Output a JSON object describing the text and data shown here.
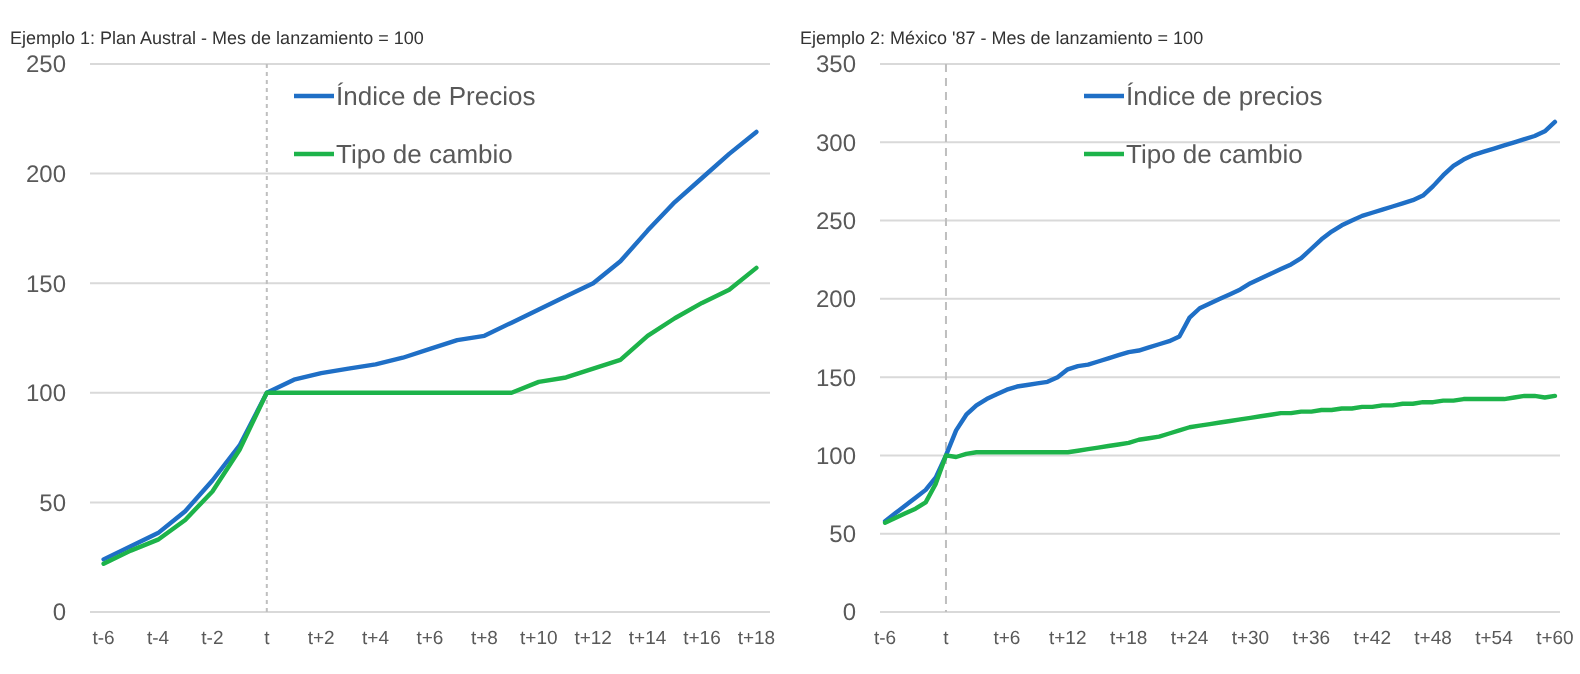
{
  "chart_data": [
    {
      "type": "line",
      "title": "Ejemplo 1: Plan Austral -  Mes de lanzamiento = 100",
      "categories": [
        "t-6",
        null,
        "t-4",
        null,
        "t-2",
        null,
        "t",
        null,
        "t+2",
        null,
        "t+4",
        null,
        "t+6",
        null,
        "t+8",
        null,
        "t+10",
        null,
        "t+12",
        null,
        "t+14",
        null,
        "t+16",
        null,
        "t+18"
      ],
      "series": [
        {
          "name": "Índice de Precios",
          "color": "#1f6fc6",
          "values": [
            24,
            30,
            36,
            46,
            60,
            76,
            100,
            106,
            109,
            111,
            113,
            116,
            120,
            124,
            126,
            132,
            138,
            144,
            150,
            160,
            174,
            187,
            198,
            209,
            219
          ]
        },
        {
          "name": "Tipo de cambio",
          "color": "#1db34a",
          "values": [
            22,
            28,
            33,
            42,
            55,
            74,
            100,
            100,
            100,
            100,
            100,
            100,
            100,
            100,
            100,
            100,
            105,
            107,
            111,
            115,
            126,
            134,
            141,
            147,
            157
          ]
        }
      ],
      "ylim": [
        0,
        250
      ],
      "yticks": [
        0,
        50,
        100,
        150,
        200,
        250
      ],
      "grid": "y",
      "legend": "top",
      "ref_lines": [
        {
          "axis": "x",
          "value": "t",
          "color": "#bfbfbf",
          "line_style": "dotted"
        }
      ]
    },
    {
      "type": "line",
      "title": "Ejemplo 2: México '87 -  Mes de lanzamiento = 100",
      "categories": [
        "t-6",
        null,
        null,
        null,
        null,
        null,
        "t",
        null,
        null,
        null,
        null,
        null,
        "t+6",
        null,
        null,
        null,
        null,
        null,
        "t+12",
        null,
        null,
        null,
        null,
        null,
        "t+18",
        null,
        null,
        null,
        null,
        null,
        "t+24",
        null,
        null,
        null,
        null,
        null,
        "t+30",
        null,
        null,
        null,
        null,
        null,
        "t+36",
        null,
        null,
        null,
        null,
        null,
        "t+42",
        null,
        null,
        null,
        null,
        null,
        "t+48",
        null,
        null,
        null,
        null,
        null,
        "t+54",
        null,
        null,
        null,
        null,
        null,
        "t+60"
      ],
      "series": [
        {
          "name": "Índice de precios",
          "color": "#1f6fc6",
          "values": [
            58,
            63,
            68,
            73,
            78,
            86,
            100,
            116,
            126,
            132,
            136,
            139,
            142,
            144,
            145,
            146,
            147,
            150,
            155,
            157,
            158,
            160,
            162,
            164,
            166,
            167,
            169,
            171,
            173,
            176,
            188,
            194,
            197,
            200,
            203,
            206,
            210,
            213,
            216,
            219,
            222,
            226,
            232,
            238,
            243,
            247,
            250,
            253,
            255,
            257,
            259,
            261,
            263,
            266,
            272,
            279,
            285,
            289,
            292,
            294,
            296,
            298,
            300,
            302,
            304,
            307,
            313
          ]
        },
        {
          "name": "Tipo de cambio",
          "color": "#1db34a",
          "values": [
            57,
            60,
            63,
            66,
            70,
            82,
            100,
            99,
            101,
            102,
            102,
            102,
            102,
            102,
            102,
            102,
            102,
            102,
            102,
            103,
            104,
            105,
            106,
            107,
            108,
            110,
            111,
            112,
            114,
            116,
            118,
            119,
            120,
            121,
            122,
            123,
            124,
            125,
            126,
            127,
            127,
            128,
            128,
            129,
            129,
            130,
            130,
            131,
            131,
            132,
            132,
            133,
            133,
            134,
            134,
            135,
            135,
            136,
            136,
            136,
            136,
            136,
            137,
            138,
            138,
            137,
            138
          ]
        }
      ],
      "ylim": [
        0,
        350
      ],
      "yticks": [
        0,
        50,
        100,
        150,
        200,
        250,
        300,
        350
      ],
      "grid": "y",
      "legend": "top",
      "ref_lines": [
        {
          "axis": "x",
          "value": "t",
          "color": "#bfbfbf",
          "line_style": "dashed"
        }
      ]
    }
  ]
}
